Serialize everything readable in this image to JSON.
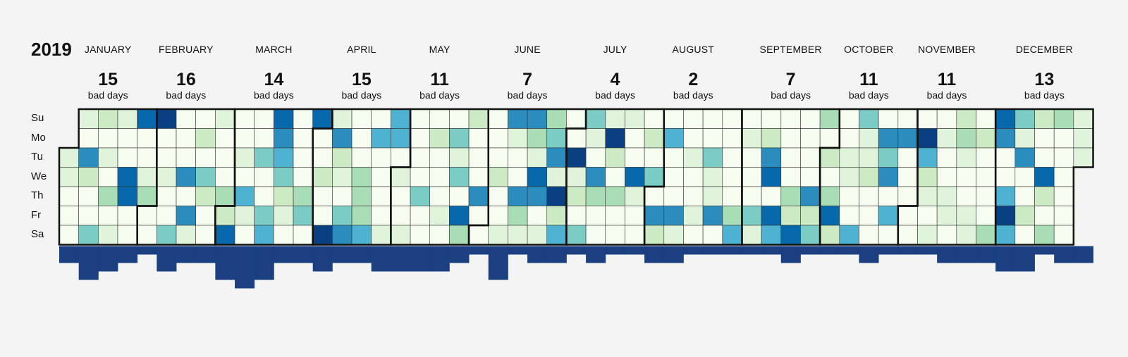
{
  "year": "2019",
  "count_suffix": "bad days",
  "days": [
    "Su",
    "Mo",
    "Tu",
    "We",
    "Th",
    "Fr",
    "Sa"
  ],
  "colors": {
    "background": "#f4f4f4",
    "bar": "#1b3f80",
    "border": "#111111",
    "cell_line": "#333333",
    "scale": [
      "#f7fcf0",
      "#e0f3db",
      "#ccebc5",
      "#a8ddb5",
      "#7bccc4",
      "#4eb3d3",
      "#2b8cbe",
      "#0868ac",
      "#084081"
    ]
  },
  "months": [
    {
      "name": "JANUARY",
      "count": "15"
    },
    {
      "name": "FEBRUARY",
      "count": "16"
    },
    {
      "name": "MARCH",
      "count": "14"
    },
    {
      "name": "APRIL",
      "count": "15"
    },
    {
      "name": "MAY",
      "count": "11"
    },
    {
      "name": "JUNE",
      "count": "7"
    },
    {
      "name": "JULY",
      "count": "4"
    },
    {
      "name": "AUGUST",
      "count": "2"
    },
    {
      "name": "SEPTEMBER",
      "count": "7"
    },
    {
      "name": "OCTOBER",
      "count": "11"
    },
    {
      "name": "NOVEMBER",
      "count": "11"
    },
    {
      "name": "DECEMBER",
      "count": "13"
    }
  ],
  "chart_data": {
    "type": "heatmap",
    "year": 2019,
    "first_weekday": "Tu",
    "level_scale": [
      0,
      8
    ],
    "monthly_bad_days": [
      {
        "month": "January",
        "bad_days": 15
      },
      {
        "month": "February",
        "bad_days": 16
      },
      {
        "month": "March",
        "bad_days": 14
      },
      {
        "month": "April",
        "bad_days": 15
      },
      {
        "month": "May",
        "bad_days": 11
      },
      {
        "month": "June",
        "bad_days": 7
      },
      {
        "month": "July",
        "bad_days": 4
      },
      {
        "month": "August",
        "bad_days": 2
      },
      {
        "month": "September",
        "bad_days": 7
      },
      {
        "month": "October",
        "bad_days": 11
      },
      {
        "month": "November",
        "bad_days": 11
      },
      {
        "month": "December",
        "bad_days": 13
      }
    ],
    "weekly_bad_days": [
      1,
      3,
      2,
      1,
      0,
      2,
      1,
      1,
      3,
      4,
      3,
      1,
      1,
      2,
      1,
      1,
      2,
      2,
      2,
      2,
      1,
      0,
      3,
      0,
      1,
      1,
      0,
      1,
      0,
      0,
      1,
      1,
      0,
      0,
      0,
      0,
      0,
      1,
      0,
      0,
      0,
      1,
      0,
      0,
      0,
      1,
      1,
      1,
      2,
      2,
      0,
      1,
      1,
      2,
      1,
      1,
      0,
      1,
      0,
      1,
      1,
      0,
      3,
      3,
      0,
      0,
      1,
      2,
      1,
      3,
      0,
      1,
      1,
      2
    ],
    "daily_levels": [
      [
        0,
        0,
        0,
        0,
        0,
        0,
        0,
        0,
        0,
        0,
        0,
        0,
        0,
        0,
        0,
        0,
        0,
        0,
        0,
        0,
        0,
        0,
        0,
        0,
        0,
        0,
        0,
        0,
        0,
        0,
        0,
        0,
        0,
        0,
        0,
        0,
        0,
        0,
        0,
        0,
        0,
        0,
        0,
        0,
        0,
        0,
        0,
        0,
        0,
        0,
        0,
        0,
        0,
        0,
        0,
        0,
        0,
        0,
        0,
        0,
        0,
        0,
        0,
        0,
        0,
        0,
        0,
        0,
        0,
        0,
        0,
        0,
        0,
        0
      ],
      [
        0,
        0,
        0,
        0,
        0,
        0,
        0,
        0,
        0,
        0,
        0,
        0,
        0,
        0,
        0,
        0,
        0,
        0,
        0,
        0,
        0,
        0,
        0,
        0,
        0,
        0,
        0,
        0,
        0,
        0,
        0,
        0,
        0,
        0,
        0,
        0,
        0,
        0,
        0,
        0,
        0,
        0,
        0,
        0,
        0,
        0,
        0,
        0,
        0,
        0,
        0,
        0,
        0,
        0,
        0,
        0,
        0,
        0,
        0,
        0,
        0,
        0,
        0,
        0,
        0,
        0,
        0,
        0,
        0,
        0,
        0,
        0,
        0,
        0
      ],
      [
        0,
        0,
        0,
        0,
        0,
        0,
        0,
        0,
        0,
        0,
        0,
        0,
        0,
        0,
        0,
        0,
        0,
        0,
        0,
        0,
        0,
        0,
        0,
        0,
        0,
        0,
        0,
        0,
        0,
        0,
        0,
        0,
        0,
        0,
        0,
        0,
        0,
        0,
        0,
        0,
        0,
        0,
        0,
        0,
        0,
        0,
        0,
        0,
        0,
        0,
        0,
        0,
        0,
        0,
        0,
        0,
        0,
        0,
        0,
        0,
        0,
        0,
        0,
        0,
        0,
        0,
        0,
        0,
        0,
        0,
        0,
        0,
        0,
        0
      ],
      [
        0,
        0,
        0,
        0,
        0,
        0,
        0,
        0,
        0,
        0,
        0,
        0,
        0,
        0,
        0,
        0,
        0,
        0,
        0,
        0,
        0,
        0,
        0,
        0,
        0,
        0,
        0,
        0,
        0,
        0,
        0,
        0,
        0,
        0,
        0,
        0,
        0,
        0,
        0,
        0,
        0,
        0,
        0,
        0,
        0,
        0,
        0,
        0,
        0,
        0,
        0,
        0,
        0,
        0,
        0,
        0,
        0,
        0,
        0,
        0,
        0,
        0,
        0,
        0,
        0,
        0,
        0,
        0,
        0,
        0,
        0,
        0,
        0,
        0
      ],
      [
        0,
        0,
        0,
        0,
        0,
        0,
        0,
        0,
        0,
        0,
        0,
        0,
        0,
        0,
        0,
        0,
        0,
        0,
        0,
        0,
        0,
        0,
        0,
        0,
        0,
        0,
        0,
        0,
        0,
        0,
        0,
        0,
        0,
        0,
        0,
        0,
        0,
        0,
        0,
        0,
        0,
        0,
        0,
        0,
        0,
        0,
        0,
        0,
        0,
        0,
        0,
        0,
        0,
        0,
        0,
        0,
        0,
        0,
        0,
        0,
        0,
        0,
        0,
        0,
        0,
        0,
        0,
        0,
        0,
        0,
        0,
        0,
        0,
        0
      ],
      [
        0,
        0,
        0,
        0,
        0,
        0,
        0,
        0,
        0,
        0,
        0,
        0,
        0,
        0,
        0,
        0,
        0,
        0,
        0,
        0,
        0,
        0,
        0,
        0,
        0,
        0,
        0,
        0,
        0,
        0,
        0,
        0,
        0,
        0,
        0,
        0,
        0,
        0,
        0,
        0,
        0,
        0,
        0,
        0,
        0,
        0,
        0,
        0,
        0,
        0,
        0,
        0,
        0,
        0,
        0,
        0,
        0,
        0,
        0,
        0,
        0,
        0,
        0,
        0,
        0,
        0,
        0,
        0,
        0,
        0,
        0,
        0,
        0,
        0
      ],
      [
        0,
        0,
        0,
        0,
        0,
        0,
        0,
        0,
        0,
        0,
        0,
        0,
        0,
        0,
        0,
        0,
        0,
        0,
        0,
        0,
        0,
        0,
        0,
        0,
        0,
        0,
        0,
        0,
        0,
        0,
        0,
        0,
        0,
        0,
        0,
        0,
        0,
        0,
        0,
        0,
        0,
        0,
        0,
        0,
        0,
        0,
        0,
        0,
        0,
        0,
        0,
        0,
        0,
        0,
        0,
        0,
        0,
        0,
        0,
        0,
        0,
        0,
        0,
        0,
        0,
        0,
        0,
        0,
        0,
        0,
        0,
        0,
        0,
        0
      ]
    ],
    "daily_levels_flat": "0530831311000051010000811000000101000000000000000000000000000000000011300000013110000000010000000010000300000001000000000000000000000010000000000000000000000000000001000000000000000000000001000000000001000000000000000000000000000000000000000100000000000000000"
  }
}
